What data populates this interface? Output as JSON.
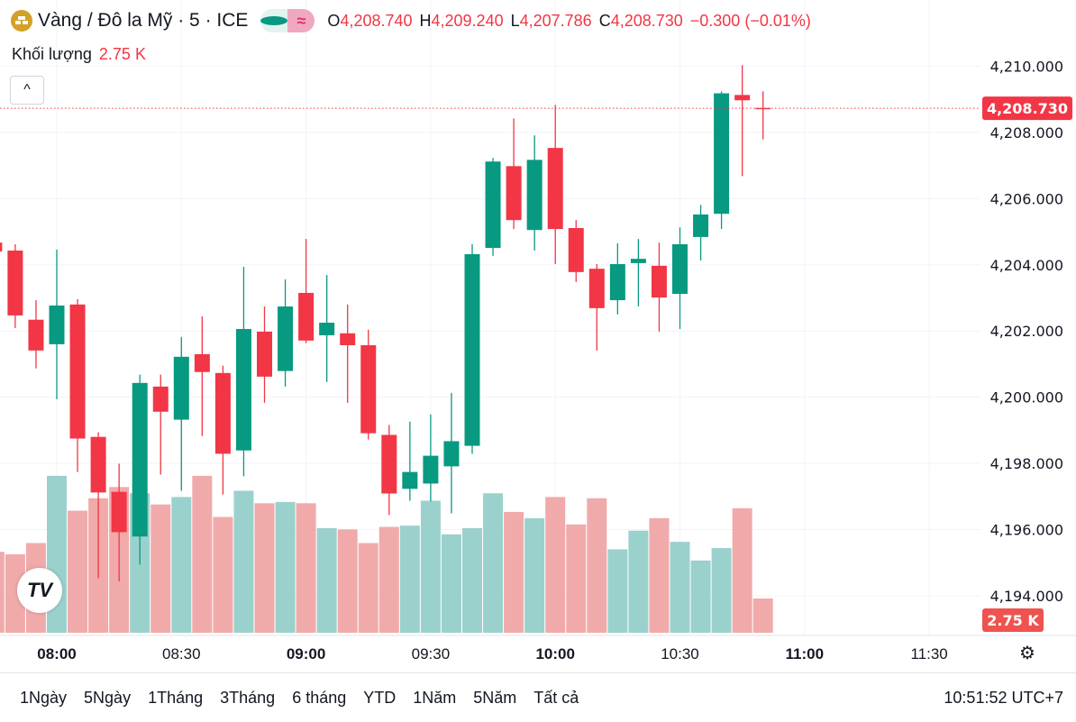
{
  "header": {
    "title": "Vàng / Đô la Mỹ · 5 · ICE",
    "logo_icon": "gold-bars-icon",
    "status_icon": "market-open-dot",
    "approx_icon": "≈",
    "o_label": "O",
    "o": "4,208.740",
    "h_label": "H",
    "h": "4,209.240",
    "l_label": "L",
    "l": "4,207.786",
    "c_label": "C",
    "c": "4,208.730",
    "change": "−0.300 (−0.01%)"
  },
  "volume_legend": {
    "label": "Khối lượng",
    "value": "2.75 K"
  },
  "collapse_label": "^",
  "tv_logo": "TV",
  "ranges": [
    "1Ngày",
    "5Ngày",
    "1Tháng",
    "3Tháng",
    "6 tháng",
    "YTD",
    "1Năm",
    "5Năm",
    "Tất cả"
  ],
  "clock": "10:51:52 UTC+7",
  "colors": {
    "up": "#089981",
    "down": "#f23645",
    "up_volume": "#9bd1cc",
    "down_volume": "#f1aaaa"
  },
  "chart_data": {
    "type": "candlestick",
    "ylim": [
      4192.8,
      4212.0
    ],
    "volume_ylim": [
      0,
      50.8
    ],
    "y_ticks": [
      "4,210.000",
      "4,208.000",
      "4,206.000",
      "4,204.000",
      "4,202.000",
      "4,200.000",
      "4,198.000",
      "4,196.000",
      "4,194.000"
    ],
    "y_tick_values": [
      4210,
      4208,
      4206,
      4204,
      4202,
      4200,
      4198,
      4196,
      4194
    ],
    "x_ticks": [
      "08:00",
      "08:30",
      "09:00",
      "09:30",
      "10:00",
      "10:30",
      "11:00",
      "11:30"
    ],
    "last_price_label": "4,208.730",
    "last_price": 4208.73,
    "last_volume_label": "2.75 K",
    "candles": [
      {
        "t": "07:45",
        "o": 4204.67,
        "h": 4204.73,
        "l": 4204.35,
        "c": 4204.4,
        "v": 6.5
      },
      {
        "t": "07:50",
        "o": 4204.43,
        "h": 4204.62,
        "l": 4202.09,
        "c": 4202.47,
        "v": 6.3
      },
      {
        "t": "07:55",
        "o": 4202.34,
        "h": 4202.93,
        "l": 4200.87,
        "c": 4201.41,
        "v": 7.2
      },
      {
        "t": "08:00",
        "o": 4201.6,
        "h": 4204.46,
        "l": 4199.94,
        "c": 4202.77,
        "v": 12.6
      },
      {
        "t": "08:05",
        "o": 4202.8,
        "h": 4202.96,
        "l": 4197.74,
        "c": 4198.75,
        "v": 9.8
      },
      {
        "t": "08:10",
        "o": 4198.8,
        "h": 4198.94,
        "l": 4194.53,
        "c": 4197.12,
        "v": 10.8
      },
      {
        "t": "08:15",
        "o": 4197.14,
        "h": 4197.99,
        "l": 4194.43,
        "c": 4195.92,
        "v": 11.7
      },
      {
        "t": "08:20",
        "o": 4195.79,
        "h": 4200.68,
        "l": 4194.94,
        "c": 4200.43,
        "v": 11.2
      },
      {
        "t": "08:25",
        "o": 4200.32,
        "h": 4200.68,
        "l": 4197.66,
        "c": 4199.56,
        "v": 10.3
      },
      {
        "t": "08:30",
        "o": 4199.32,
        "h": 4201.82,
        "l": 4197.17,
        "c": 4201.22,
        "v": 10.9
      },
      {
        "t": "08:35",
        "o": 4201.3,
        "h": 4202.44,
        "l": 4198.83,
        "c": 4200.76,
        "v": 12.6
      },
      {
        "t": "08:40",
        "o": 4200.73,
        "h": 4200.95,
        "l": 4197.06,
        "c": 4198.29,
        "v": 9.3
      },
      {
        "t": "08:45",
        "o": 4198.39,
        "h": 4203.94,
        "l": 4197.61,
        "c": 4202.06,
        "v": 11.4
      },
      {
        "t": "08:50",
        "o": 4201.98,
        "h": 4202.74,
        "l": 4199.83,
        "c": 4200.62,
        "v": 10.4
      },
      {
        "t": "08:55",
        "o": 4200.79,
        "h": 4203.56,
        "l": 4200.32,
        "c": 4202.74,
        "v": 10.5
      },
      {
        "t": "09:00",
        "o": 4203.15,
        "h": 4204.78,
        "l": 4201.63,
        "c": 4201.71,
        "v": 10.4
      },
      {
        "t": "09:05",
        "o": 4201.87,
        "h": 4203.69,
        "l": 4200.46,
        "c": 4202.25,
        "v": 8.4
      },
      {
        "t": "09:10",
        "o": 4201.93,
        "h": 4202.8,
        "l": 4199.83,
        "c": 4201.57,
        "v": 8.3
      },
      {
        "t": "09:15",
        "o": 4201.57,
        "h": 4202.04,
        "l": 4198.72,
        "c": 4198.91,
        "v": 7.2
      },
      {
        "t": "09:20",
        "o": 4198.86,
        "h": 4199.16,
        "l": 4196.44,
        "c": 4197.09,
        "v": 8.5
      },
      {
        "t": "09:25",
        "o": 4197.23,
        "h": 4199.26,
        "l": 4196.87,
        "c": 4197.74,
        "v": 8.6
      },
      {
        "t": "09:30",
        "o": 4197.39,
        "h": 4199.48,
        "l": 4196.85,
        "c": 4198.23,
        "v": 10.6
      },
      {
        "t": "09:35",
        "o": 4197.91,
        "h": 4200.13,
        "l": 4196.49,
        "c": 4198.67,
        "v": 7.9
      },
      {
        "t": "09:40",
        "o": 4198.53,
        "h": 4204.62,
        "l": 4198.29,
        "c": 4204.32,
        "v": 8.4
      },
      {
        "t": "09:45",
        "o": 4204.51,
        "h": 4207.23,
        "l": 4204.27,
        "c": 4207.12,
        "v": 11.2
      },
      {
        "t": "09:50",
        "o": 4206.98,
        "h": 4208.42,
        "l": 4205.08,
        "c": 4205.35,
        "v": 9.7
      },
      {
        "t": "09:55",
        "o": 4205.05,
        "h": 4207.91,
        "l": 4204.43,
        "c": 4207.17,
        "v": 9.2
      },
      {
        "t": "10:00",
        "o": 4207.53,
        "h": 4208.83,
        "l": 4204.02,
        "c": 4205.08,
        "v": 10.9
      },
      {
        "t": "10:05",
        "o": 4205.11,
        "h": 4205.35,
        "l": 4203.48,
        "c": 4203.78,
        "v": 8.7
      },
      {
        "t": "10:10",
        "o": 4203.88,
        "h": 4204.02,
        "l": 4201.41,
        "c": 4202.69,
        "v": 10.8
      },
      {
        "t": "10:15",
        "o": 4202.93,
        "h": 4204.65,
        "l": 4202.5,
        "c": 4204.02,
        "v": 6.7
      },
      {
        "t": "10:20",
        "o": 4204.05,
        "h": 4204.78,
        "l": 4202.74,
        "c": 4204.18,
        "v": 8.2
      },
      {
        "t": "10:25",
        "o": 4203.97,
        "h": 4204.67,
        "l": 4201.98,
        "c": 4203.01,
        "v": 9.2
      },
      {
        "t": "10:30",
        "o": 4203.12,
        "h": 4205.13,
        "l": 4202.06,
        "c": 4204.62,
        "v": 7.3
      },
      {
        "t": "10:35",
        "o": 4204.84,
        "h": 4205.81,
        "l": 4204.13,
        "c": 4205.52,
        "v": 5.8
      },
      {
        "t": "10:40",
        "o": 4205.54,
        "h": 4209.24,
        "l": 4205.08,
        "c": 4209.18,
        "v": 6.8
      },
      {
        "t": "10:45",
        "o": 4209.13,
        "h": 4210.03,
        "l": 4206.68,
        "c": 4208.97,
        "v": 10.0
      },
      {
        "t": "10:50",
        "o": 4208.74,
        "h": 4209.24,
        "l": 4207.786,
        "c": 4208.73,
        "v": 2.75
      }
    ]
  }
}
